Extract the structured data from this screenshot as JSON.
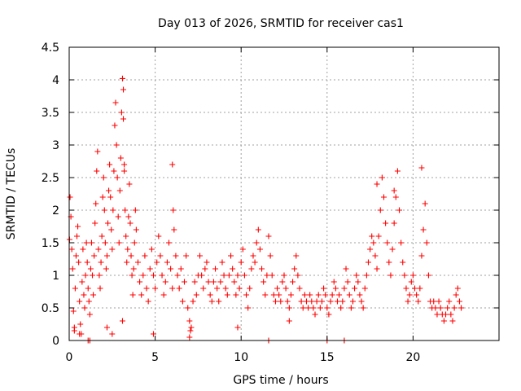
{
  "chart_data": {
    "type": "scatter",
    "title": "Day 013 of 2026, SRMTID for receiver cas1",
    "xlabel": "GPS time / hours",
    "ylabel": "SRMTID / TECUs",
    "xlim": [
      0,
      25
    ],
    "ylim": [
      0,
      4.5
    ],
    "x_ticks": [
      0,
      5,
      10,
      15,
      20
    ],
    "x_tick_labels": [
      "0",
      "5",
      "10",
      "15",
      "20"
    ],
    "y_ticks": [
      0,
      0.5,
      1,
      1.5,
      2,
      2.5,
      3,
      3.5,
      4,
      4.5
    ],
    "y_tick_labels": [
      "0",
      "0.5",
      "1",
      "1.5",
      "2",
      "2.5",
      "3",
      "3.5",
      "4",
      "4.5"
    ],
    "grid": true,
    "marker": "plus",
    "series": [
      {
        "name": "SRMTID",
        "color": "#ff0000",
        "x": [
          0.02,
          0.05,
          0.1,
          0.15,
          0.2,
          0.25,
          0.3,
          0.35,
          0.4,
          0.45,
          0.5,
          0.55,
          0.6,
          0.65,
          0.7,
          0.75,
          0.8,
          0.85,
          0.9,
          0.95,
          1.0,
          1.05,
          1.1,
          1.15,
          1.2,
          1.25,
          1.3,
          1.35,
          1.4,
          1.45,
          1.5,
          1.55,
          1.6,
          1.65,
          1.7,
          1.75,
          1.8,
          1.85,
          1.9,
          1.95,
          2.0,
          2.05,
          2.1,
          2.15,
          2.2,
          2.25,
          2.3,
          2.35,
          2.4,
          2.45,
          2.5,
          2.55,
          2.6,
          2.65,
          2.7,
          2.75,
          2.8,
          2.85,
          2.9,
          2.95,
          3.0,
          3.05,
          3.1,
          3.15,
          3.2,
          3.25,
          3.3,
          3.35,
          3.4,
          3.45,
          3.5,
          3.55,
          3.6,
          3.65,
          3.7,
          3.75,
          3.8,
          3.85,
          3.9,
          4.0,
          4.1,
          4.2,
          4.3,
          4.4,
          4.5,
          4.6,
          4.7,
          4.8,
          4.9,
          5.0,
          5.1,
          5.2,
          5.3,
          5.4,
          5.5,
          5.6,
          5.7,
          5.8,
          5.9,
          6.0,
          6.05,
          6.1,
          6.2,
          6.3,
          6.4,
          6.5,
          6.6,
          6.7,
          6.8,
          6.9,
          7.0,
          7.1,
          7.2,
          7.3,
          7.4,
          7.5,
          7.6,
          7.7,
          7.8,
          7.9,
          8.0,
          8.1,
          8.2,
          8.3,
          8.4,
          8.5,
          8.6,
          8.7,
          8.8,
          8.9,
          9.0,
          9.1,
          9.2,
          9.3,
          9.4,
          9.5,
          9.6,
          9.7,
          9.8,
          9.9,
          10.0,
          10.1,
          10.2,
          10.3,
          10.4,
          10.5,
          10.6,
          10.7,
          10.8,
          10.9,
          11.0,
          11.1,
          11.2,
          11.3,
          11.4,
          11.5,
          11.6,
          11.7,
          11.8,
          11.9,
          12.0,
          12.1,
          12.2,
          12.3,
          12.4,
          12.5,
          12.6,
          12.7,
          12.8,
          12.9,
          13.0,
          13.1,
          13.2,
          13.3,
          13.4,
          13.5,
          13.6,
          13.7,
          13.8,
          13.9,
          14.0,
          14.1,
          14.2,
          14.3,
          14.4,
          14.5,
          14.6,
          14.7,
          14.8,
          14.9,
          15.0,
          15.1,
          15.2,
          15.3,
          15.4,
          15.5,
          15.6,
          15.7,
          15.8,
          15.9,
          16.0,
          16.1,
          16.2,
          16.3,
          16.4,
          16.5,
          16.6,
          16.7,
          16.8,
          16.9,
          17.0,
          17.1,
          17.2,
          17.3,
          17.4,
          17.5,
          17.6,
          17.7,
          17.8,
          17.9,
          18.0,
          18.1,
          18.2,
          18.3,
          18.4,
          18.5,
          18.6,
          18.7,
          18.8,
          18.9,
          19.0,
          19.1,
          19.2,
          19.3,
          19.4,
          19.5,
          19.6,
          19.7,
          19.8,
          19.9,
          20.0,
          20.1,
          20.2,
          20.3,
          20.4,
          20.5,
          20.6,
          20.7,
          20.8,
          20.9,
          21.0,
          21.1,
          21.2,
          21.3,
          21.4,
          21.5,
          21.6,
          21.7,
          21.8,
          21.9,
          22.0,
          22.1,
          22.2,
          22.3,
          22.4,
          22.5,
          22.6,
          22.7,
          22.8,
          1.1,
          1.2,
          11.6,
          15.0,
          16.0,
          0.3,
          0.6,
          2.2,
          2.5,
          3.1,
          3.15,
          3.2,
          4.9,
          6.0,
          7.0,
          7.05,
          9.8,
          12.8,
          17.9,
          18.9,
          20.5
        ],
        "y": [
          1.55,
          2.2,
          1.9,
          1.4,
          1.1,
          0.45,
          0.2,
          0.8,
          1.3,
          1.6,
          1.75,
          1.2,
          0.6,
          0.25,
          0.1,
          0.9,
          1.4,
          0.7,
          0.5,
          1.0,
          1.5,
          1.2,
          0.8,
          0.6,
          0.4,
          1.1,
          1.5,
          1.0,
          0.7,
          1.3,
          1.8,
          2.1,
          2.6,
          2.9,
          1.4,
          1.0,
          0.8,
          1.2,
          1.6,
          2.2,
          2.5,
          2.0,
          1.5,
          1.1,
          1.3,
          1.8,
          2.3,
          2.7,
          2.2,
          1.7,
          1.4,
          2.0,
          2.6,
          3.3,
          3.65,
          3.0,
          2.5,
          1.9,
          1.5,
          2.3,
          2.8,
          3.5,
          4.02,
          3.85,
          2.6,
          2.0,
          1.6,
          1.2,
          1.4,
          1.9,
          2.4,
          1.8,
          1.3,
          1.0,
          0.7,
          1.1,
          1.5,
          2.0,
          1.7,
          1.2,
          0.9,
          0.7,
          1.0,
          1.3,
          0.8,
          0.6,
          1.1,
          1.4,
          1.0,
          0.8,
          1.2,
          1.6,
          1.3,
          1.0,
          0.7,
          0.9,
          1.2,
          1.5,
          1.1,
          0.8,
          2.0,
          1.7,
          1.3,
          1.0,
          0.8,
          1.1,
          0.6,
          0.9,
          1.3,
          0.5,
          0.3,
          0.2,
          0.6,
          0.9,
          0.7,
          1.0,
          1.3,
          1.0,
          0.8,
          1.1,
          1.2,
          0.9,
          0.7,
          0.6,
          0.9,
          1.1,
          0.8,
          0.6,
          0.9,
          1.2,
          1.0,
          0.8,
          0.7,
          1.0,
          1.3,
          1.1,
          0.9,
          0.7,
          1.0,
          0.8,
          1.2,
          1.4,
          1.0,
          0.7,
          0.5,
          0.8,
          1.1,
          1.3,
          1.2,
          1.5,
          1.7,
          1.4,
          1.1,
          0.9,
          0.7,
          1.0,
          1.6,
          1.3,
          1.0,
          0.7,
          0.6,
          0.8,
          0.7,
          0.6,
          0.9,
          1.0,
          0.8,
          0.6,
          0.5,
          0.7,
          0.9,
          1.1,
          1.3,
          1.0,
          0.8,
          0.6,
          0.5,
          0.7,
          0.6,
          0.5,
          0.7,
          0.6,
          0.5,
          0.4,
          0.6,
          0.7,
          0.5,
          0.6,
          0.8,
          0.7,
          0.5,
          0.4,
          0.6,
          0.7,
          0.9,
          0.8,
          0.6,
          0.7,
          0.5,
          0.6,
          0.8,
          1.1,
          0.9,
          0.7,
          0.5,
          0.6,
          0.8,
          1.0,
          0.9,
          0.7,
          0.6,
          0.5,
          0.8,
          1.0,
          1.2,
          1.4,
          1.6,
          1.5,
          1.3,
          1.1,
          1.6,
          2.0,
          2.5,
          2.2,
          1.8,
          1.5,
          1.2,
          1.0,
          1.4,
          1.8,
          2.2,
          2.6,
          2.0,
          1.5,
          1.2,
          1.0,
          0.8,
          0.6,
          0.7,
          0.9,
          1.0,
          0.8,
          0.7,
          0.6,
          0.8,
          1.3,
          1.7,
          2.1,
          1.5,
          1.0,
          0.6,
          0.5,
          0.6,
          0.5,
          0.4,
          0.6,
          0.5,
          0.4,
          0.3,
          0.4,
          0.5,
          0.6,
          0.4,
          0.3,
          0.5,
          0.7,
          0.8,
          0.6,
          0.5,
          0.0,
          0.0,
          0.0,
          0.0,
          0.0,
          0.15,
          0.1,
          0.2,
          0.1,
          0.3,
          3.4,
          2.7,
          0.1,
          2.7,
          0.05,
          0.15,
          0.2,
          0.3,
          2.4,
          2.3,
          2.65
        ]
      }
    ]
  }
}
